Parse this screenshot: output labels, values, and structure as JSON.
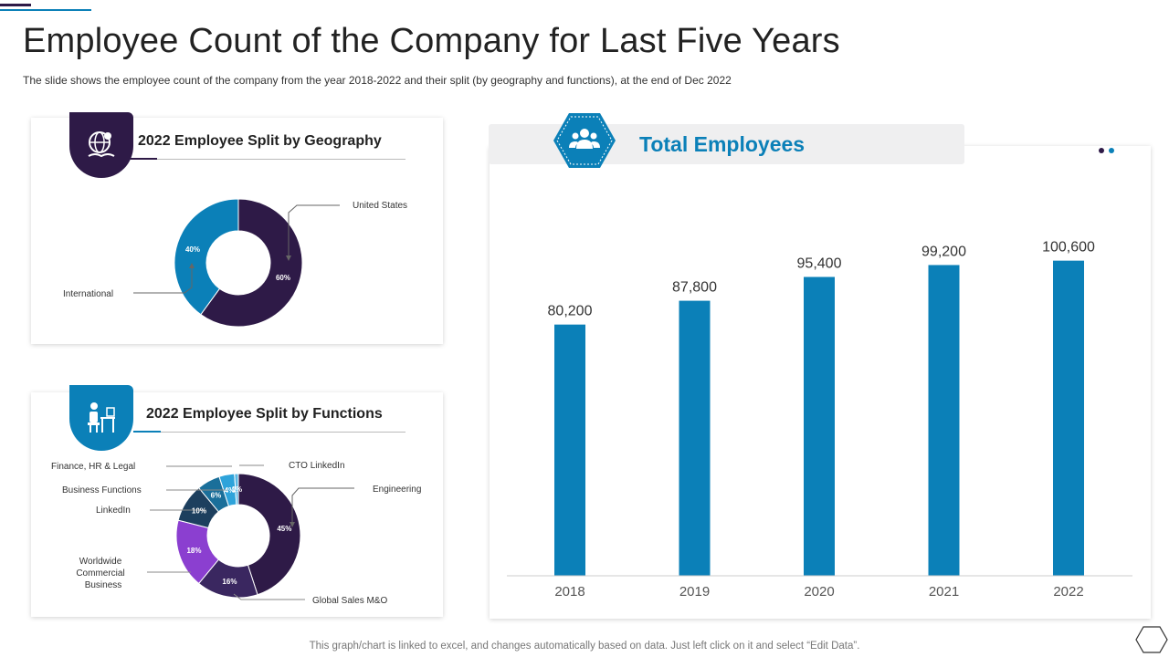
{
  "page": {
    "title": "Employee Count of the Company for Last Five Years",
    "subtitle": "The slide shows the employee count of the company from the year 2018-2022  and their split (by geography  and functions), at the end of Dec 2022",
    "footer": "This graph/chart is linked to excel,  and changes automatically based on data. Just left click on it and select “Edit Data”."
  },
  "geo_card": {
    "heading": "2022 Employee Split by Geography",
    "icon": "globe-book-icon"
  },
  "func_card": {
    "heading": "2022 Employee Split by Functions",
    "icon": "person-at-desk-icon"
  },
  "total_card": {
    "heading": "Total Employees",
    "icon": "people-group-icon"
  },
  "colors": {
    "purple": "#2e1a47",
    "blue": "#0b80b8",
    "light_blue": "#2ea3da",
    "mid_blue": "#1a6f9a",
    "violet": "#8b3fd0",
    "dark_navy": "#1d3f5e"
  },
  "chart_data": [
    {
      "type": "pie",
      "title": "2022 Employee Split by Geography",
      "categories": [
        "United States",
        "International"
      ],
      "values": [
        60,
        40
      ],
      "value_labels": [
        "60%",
        "40%"
      ],
      "unit": "%"
    },
    {
      "type": "pie",
      "title": "2022 Employee Split by Functions",
      "categories": [
        "Engineering",
        "Global Sales M&O",
        "Worldwide Commercial Business",
        "LinkedIn",
        "Business Functions",
        "Finance, HR & Legal",
        "CTO LinkedIn"
      ],
      "label_lines": {
        "Worldwide Commercial Business": [
          "Worldwide",
          "Commercial",
          "Business"
        ]
      },
      "values": [
        45,
        16,
        18,
        10,
        6,
        4,
        1
      ],
      "value_labels": [
        "45%",
        "16%",
        "18%",
        "10%",
        "6%",
        "4%",
        "1%"
      ],
      "unit": "%"
    },
    {
      "type": "bar",
      "title": "Total Employees",
      "categories": [
        "2018",
        "2019",
        "2020",
        "2021",
        "2022"
      ],
      "values": [
        80200,
        87800,
        95400,
        99200,
        100600
      ],
      "value_labels": [
        "80,200",
        "87,800",
        "95,400",
        "99,200",
        "100,600"
      ],
      "xlabel": "",
      "ylabel": "",
      "ylim": [
        0,
        120000
      ],
      "grid": false
    }
  ]
}
